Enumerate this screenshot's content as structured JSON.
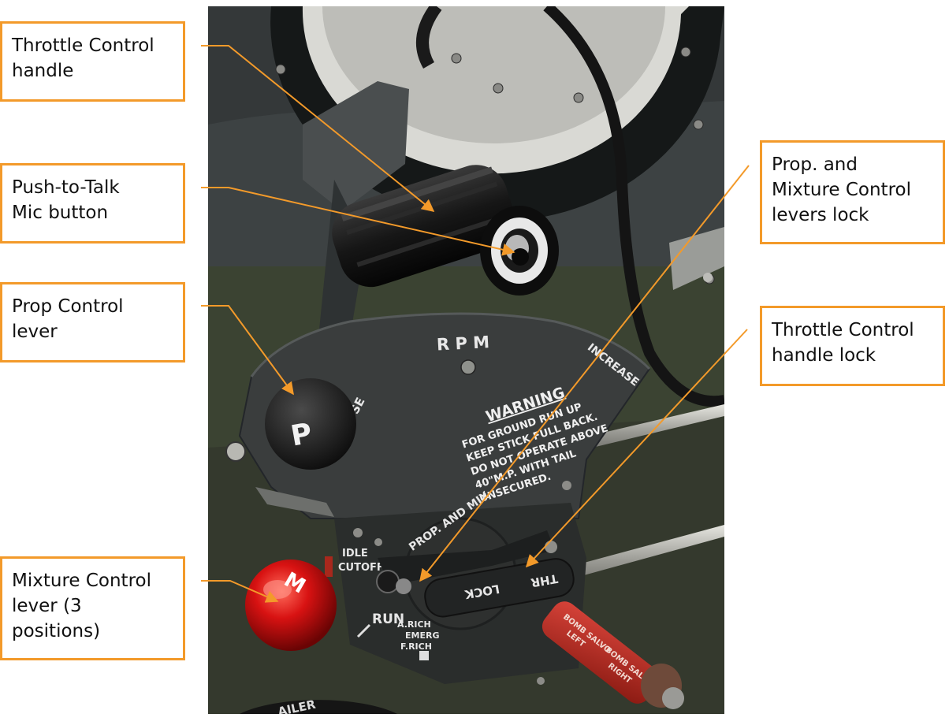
{
  "figure": {
    "callouts": [
      {
        "id": "throttle-control-handle",
        "lines": [
          "Throttle Control",
          "handle"
        ]
      },
      {
        "id": "push-to-talk-mic-button",
        "lines": [
          "Push-to-Talk",
          "Mic button"
        ]
      },
      {
        "id": "prop-control-lever",
        "lines": [
          "Prop Control",
          "lever"
        ]
      },
      {
        "id": "mixture-control-lever",
        "lines": [
          "Mixture Control",
          "lever (3",
          "positions)"
        ]
      },
      {
        "id": "prop-mixture-levers-lock",
        "lines": [
          "Prop. and",
          "Mixture Control",
          "levers lock"
        ]
      },
      {
        "id": "throttle-control-handle-lock",
        "lines": [
          "Throttle Control",
          "handle lock"
        ]
      }
    ],
    "panel_markings": {
      "rpm": "R P M",
      "increase": "INCREASE",
      "decrease_fragment": "SE",
      "warning_title": "WARNING",
      "warning_lines": [
        "FOR GROUND RUN UP",
        "KEEP STICK FULL BACK.",
        "DO NOT OPERATE ABOVE",
        "40\"M.P. WITH TAIL",
        "UNSECURED."
      ],
      "prop_knob": "P",
      "mixture_knob": "M",
      "prop_and_mix": "PROP. AND MIX",
      "idle": "IDLE",
      "cutoff": "CUTOFF",
      "run": "RUN",
      "a_rich": "A.RICH",
      "emerg": "EMERG",
      "f_rich": "F.RICH",
      "thr": "THR",
      "lock": "LOCK",
      "bomb_salvo_left": [
        "BOMB SALVO",
        "LEFT"
      ],
      "bomb_salvo_right": [
        "BOMB SALVO",
        "RIGHT"
      ],
      "aileron_fragment": "AILER"
    },
    "colors": {
      "accent": "#f39a2a",
      "panel": "#3a3d3d",
      "olive": "#3b4332",
      "mixture_knob": "#d81212",
      "bomb_salvo_handle": "#b7291d"
    }
  }
}
